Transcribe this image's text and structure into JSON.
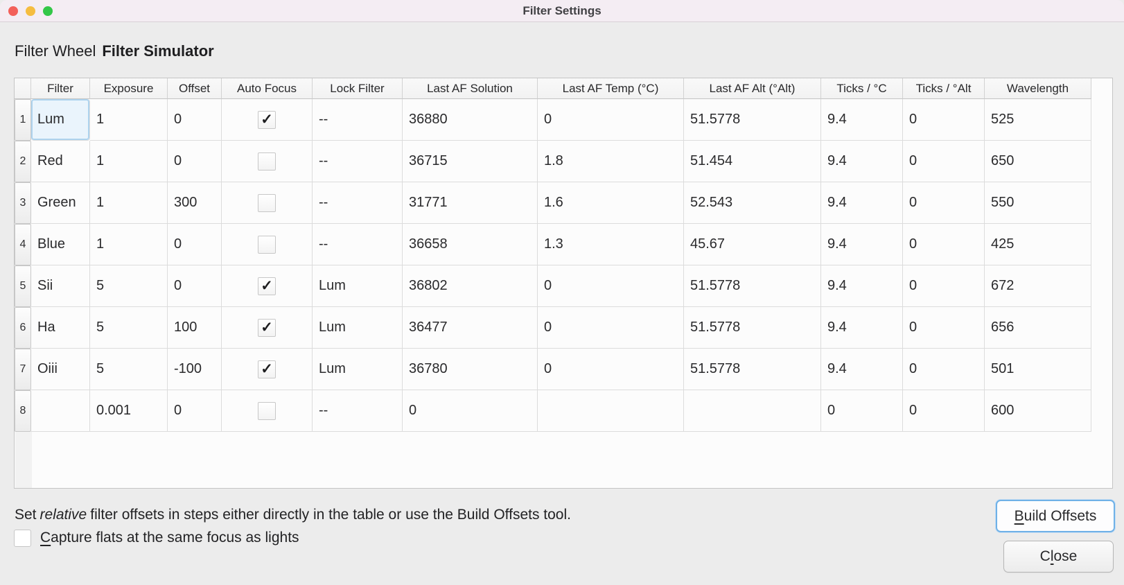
{
  "window": {
    "title": "Filter Settings",
    "traffic_lights": {
      "close": "#f3605a",
      "minimize": "#f5bd40",
      "zoom": "#33c748"
    }
  },
  "header": {
    "label": "Filter Wheel",
    "value": "Filter Simulator"
  },
  "table": {
    "columns": [
      "Filter",
      "Exposure",
      "Offset",
      "Auto Focus",
      "Lock Filter",
      "Last AF Solution",
      "Last AF Temp (°C)",
      "Last AF Alt (°Alt)",
      "Ticks / °C",
      "Ticks / °Alt",
      "Wavelength"
    ],
    "rows": [
      {
        "num": "1",
        "filter": "Lum",
        "exposure": "1",
        "offset": "0",
        "auto_focus": true,
        "lock_filter": "--",
        "last_af_solution": "36880",
        "last_af_temp": "0",
        "last_af_alt": "51.5778",
        "ticks_c": "9.4",
        "ticks_alt": "0",
        "wavelength": "525",
        "selected_cell": "filter"
      },
      {
        "num": "2",
        "filter": "Red",
        "exposure": "1",
        "offset": "0",
        "auto_focus": false,
        "lock_filter": "--",
        "last_af_solution": "36715",
        "last_af_temp": "1.8",
        "last_af_alt": "51.454",
        "ticks_c": "9.4",
        "ticks_alt": "0",
        "wavelength": "650",
        "selected_cell": null
      },
      {
        "num": "3",
        "filter": "Green",
        "exposure": "1",
        "offset": "300",
        "auto_focus": false,
        "lock_filter": "--",
        "last_af_solution": "31771",
        "last_af_temp": "1.6",
        "last_af_alt": "52.543",
        "ticks_c": "9.4",
        "ticks_alt": "0",
        "wavelength": "550",
        "selected_cell": null
      },
      {
        "num": "4",
        "filter": "Blue",
        "exposure": "1",
        "offset": "0",
        "auto_focus": false,
        "lock_filter": "--",
        "last_af_solution": "36658",
        "last_af_temp": "1.3",
        "last_af_alt": "45.67",
        "ticks_c": "9.4",
        "ticks_alt": "0",
        "wavelength": "425",
        "selected_cell": null
      },
      {
        "num": "5",
        "filter": "Sii",
        "exposure": "5",
        "offset": "0",
        "auto_focus": true,
        "lock_filter": "Lum",
        "last_af_solution": "36802",
        "last_af_temp": "0",
        "last_af_alt": "51.5778",
        "ticks_c": "9.4",
        "ticks_alt": "0",
        "wavelength": "672",
        "selected_cell": null
      },
      {
        "num": "6",
        "filter": "Ha",
        "exposure": "5",
        "offset": "100",
        "auto_focus": true,
        "lock_filter": "Lum",
        "last_af_solution": "36477",
        "last_af_temp": "0",
        "last_af_alt": "51.5778",
        "ticks_c": "9.4",
        "ticks_alt": "0",
        "wavelength": "656",
        "selected_cell": null
      },
      {
        "num": "7",
        "filter": "Oiii",
        "exposure": "5",
        "offset": "-100",
        "auto_focus": true,
        "lock_filter": "Lum",
        "last_af_solution": "36780",
        "last_af_temp": "0",
        "last_af_alt": "51.5778",
        "ticks_c": "9.4",
        "ticks_alt": "0",
        "wavelength": "501",
        "selected_cell": null
      },
      {
        "num": "8",
        "filter": "",
        "exposure": "0.001",
        "offset": "0",
        "auto_focus": false,
        "lock_filter": "--",
        "last_af_solution": "0",
        "last_af_temp": "",
        "last_af_alt": "",
        "ticks_c": "0",
        "ticks_alt": "0",
        "wavelength": "600",
        "selected_cell": null
      }
    ],
    "checkmark_glyph": "✓"
  },
  "footer": {
    "hint_prefix": "Set",
    "hint_italic": "relative",
    "hint_suffix": "filter offsets in steps either directly in the table or use the Build Offsets tool.",
    "build_offsets_button": {
      "label": "Build Offsets",
      "mnemonic_index": 0
    },
    "close_button": {
      "label": "Close",
      "mnemonic_index": 1
    },
    "flats_checkbox": {
      "label": "Capture flats at the same focus as lights",
      "mnemonic_index": 0,
      "checked": false
    }
  },
  "colors": {
    "titlebar_bg": "#f4edf3",
    "window_bg": "#ececec",
    "focus_ring": "#6fb1e7",
    "selected_cell_bg": "#eaf4fc",
    "selected_cell_border": "#aed3ee"
  }
}
